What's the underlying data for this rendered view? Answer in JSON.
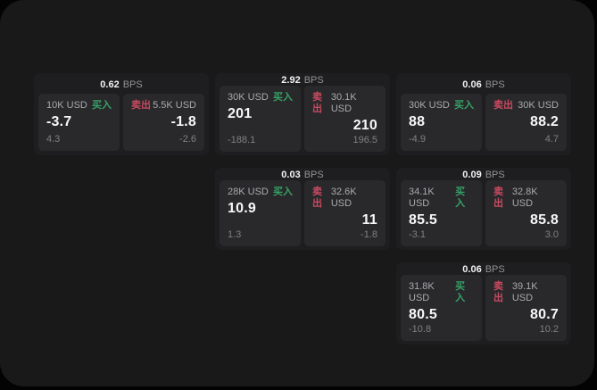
{
  "labels": {
    "bps_unit": "BPS",
    "buy": "买入",
    "sell": "卖出"
  },
  "colors": {
    "buy_green": "#35a266",
    "sell_red": "#c94a60",
    "screen_bg": "#19191a",
    "card_bg": "#1e1e20",
    "pane_bg": "#29292c"
  },
  "cards": [
    {
      "bps": "0.62",
      "buy": {
        "size": "10K USD",
        "value": "-3.7",
        "sub": "4.3"
      },
      "sell": {
        "size": "5.5K USD",
        "value": "-1.8",
        "sub": "-2.6"
      }
    },
    {
      "bps": "2.92",
      "buy": {
        "size": "30K USD",
        "value": "201",
        "sub": "-188.1"
      },
      "sell": {
        "size": "30.1K USD",
        "value": "210",
        "sub": "196.5"
      }
    },
    {
      "bps": "0.06",
      "buy": {
        "size": "30K USD",
        "value": "88",
        "sub": "-4.9"
      },
      "sell": {
        "size": "30K USD",
        "value": "88.2",
        "sub": "4.7"
      }
    },
    {
      "bps": "0.03",
      "buy": {
        "size": "28K USD",
        "value": "10.9",
        "sub": "1.3"
      },
      "sell": {
        "size": "32.6K USD",
        "value": "11",
        "sub": "-1.8"
      }
    },
    {
      "bps": "0.09",
      "buy": {
        "size": "34.1K USD",
        "value": "85.5",
        "sub": "-3.1"
      },
      "sell": {
        "size": "32.8K USD",
        "value": "85.8",
        "sub": "3.0"
      }
    },
    {
      "bps": "0.06",
      "buy": {
        "size": "31.8K USD",
        "value": "80.5",
        "sub": "-10.8"
      },
      "sell": {
        "size": "39.1K USD",
        "value": "80.7",
        "sub": "10.2"
      }
    }
  ]
}
